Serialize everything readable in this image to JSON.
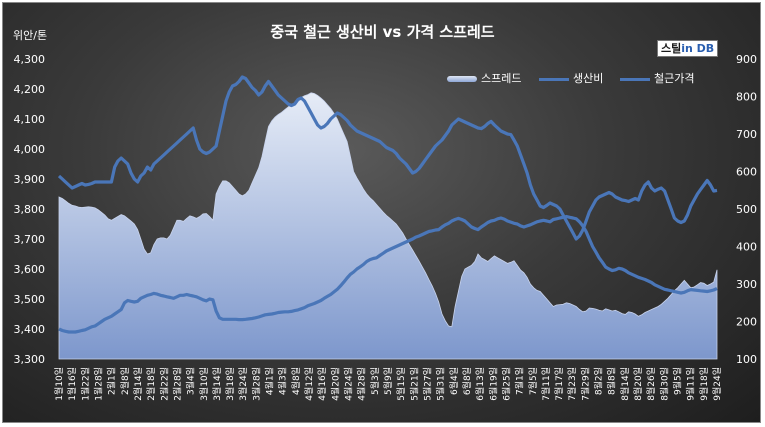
{
  "title": "중국 철근 생산비 vs 가격 스프레드",
  "unit_label": "위안/톤",
  "logo": {
    "part1": "스틸",
    "part2": "in DB"
  },
  "colors": {
    "line": "#4a76b8",
    "area_top": "#e6ecf7",
    "area_bottom": "#7d97cc",
    "text": "#ffffff"
  },
  "chart_data": {
    "type": "line",
    "grid": false,
    "legend_position": "top-right",
    "left_axis": {
      "min": 3300,
      "max": 4300,
      "ticks": [
        "3,300",
        "3,400",
        "3,500",
        "3,600",
        "3,700",
        "3,800",
        "3,900",
        "4,000",
        "4,100",
        "4,200",
        "4,300"
      ]
    },
    "right_axis": {
      "min": 100,
      "max": 900,
      "ticks": [
        "100",
        "200",
        "300",
        "400",
        "500",
        "600",
        "700",
        "800",
        "900"
      ]
    },
    "x_labels": [
      "1월10일",
      "1월16일",
      "1월22일",
      "1월28일",
      "2월1일",
      "2월8일",
      "2월14일",
      "2월18일",
      "2월22일",
      "2월28일",
      "3월4일",
      "3월10일",
      "3월14일",
      "3월18일",
      "3월24일",
      "3월28일",
      "4월1일",
      "4월3일",
      "4월8일",
      "4월12일",
      "4월16일",
      "4월20일",
      "4월24일",
      "4월28일",
      "5월3일",
      "5월9일",
      "5월15일",
      "5월21일",
      "5월27일",
      "5월31일",
      "6월4일",
      "6월8일",
      "6월13일",
      "6월19일",
      "6월25일",
      "7월1일",
      "7월5일",
      "7월11일",
      "7월17일",
      "7월23일",
      "7월29일",
      "8월2일",
      "8월8일",
      "8월14일",
      "8월20일",
      "8월26일",
      "8월30일",
      "9월5일",
      "9월11일",
      "9월18일",
      "9월24일"
    ],
    "series": [
      {
        "name": "스프레드",
        "axis": "right",
        "style": "area",
        "values": [
          532,
          528,
          522,
          515,
          510,
          508,
          505,
          504,
          505,
          506,
          505,
          503,
          498,
          491,
          484,
          474,
          470,
          475,
          480,
          485,
          482,
          475,
          468,
          460,
          445,
          420,
          393,
          380,
          383,
          405,
          420,
          423,
          423,
          420,
          430,
          450,
          470,
          470,
          467,
          475,
          482,
          479,
          475,
          480,
          487,
          488,
          480,
          470,
          540,
          560,
          575,
          575,
          570,
          560,
          550,
          540,
          535,
          540,
          550,
          570,
          590,
          610,
          640,
          680,
          720,
          735,
          745,
          752,
          758,
          765,
          772,
          779,
          782,
          788,
          797,
          802,
          805,
          810,
          808,
          803,
          796,
          788,
          778,
          768,
          755,
          740,
          720,
          700,
          680,
          640,
          600,
          583,
          568,
          553,
          540,
          530,
          522,
          512,
          502,
          492,
          483,
          476,
          468,
          460,
          448,
          436,
          420,
          405,
          391,
          376,
          361,
          345,
          330,
          312,
          295,
          275,
          252,
          220,
          202,
          188,
          186,
          240,
          280,
          320,
          340,
          345,
          350,
          360,
          380,
          370,
          365,
          360,
          368,
          375,
          370,
          365,
          360,
          355,
          358,
          362,
          350,
          337,
          330,
          318,
          300,
          290,
          283,
          280,
          270,
          260,
          250,
          240,
          244,
          245,
          246,
          250,
          248,
          244,
          240,
          232,
          226,
          228,
          236,
          235,
          233,
          230,
          228,
          234,
          231,
          228,
          230,
          226,
          221,
          219,
          226,
          224,
          220,
          214,
          218,
          224,
          228,
          232,
          236,
          240,
          246,
          254,
          262,
          272,
          282,
          290,
          300,
          310,
          300,
          290,
          292,
          298,
          304,
          302,
          296,
          300,
          305,
          338
        ]
      },
      {
        "name": "생산비",
        "axis": "right",
        "style": "line",
        "values": [
          180,
          176,
          174,
          172,
          172,
          172,
          174,
          176,
          178,
          182,
          186,
          188,
          194,
          200,
          206,
          210,
          214,
          220,
          226,
          232,
          250,
          256,
          254,
          252,
          254,
          262,
          266,
          270,
          272,
          275,
          273,
          270,
          268,
          266,
          264,
          262,
          266,
          270,
          270,
          272,
          270,
          268,
          266,
          262,
          258,
          255,
          260,
          258,
          228,
          210,
          206,
          206,
          206,
          206,
          206,
          205,
          205,
          206,
          207,
          208,
          210,
          212,
          215,
          218,
          219,
          220,
          222,
          224,
          225,
          226,
          226,
          227,
          229,
          231,
          234,
          237,
          242,
          245,
          248,
          252,
          256,
          262,
          267,
          272,
          279,
          286,
          295,
          305,
          316,
          326,
          332,
          340,
          346,
          352,
          360,
          365,
          368,
          370,
          376,
          382,
          388,
          392,
          396,
          400,
          404,
          408,
          412,
          416,
          420,
          425,
          428,
          432,
          436,
          440,
          442,
          444,
          445,
          452,
          458,
          462,
          468,
          472,
          475,
          472,
          468,
          460,
          452,
          448,
          445,
          452,
          458,
          464,
          468,
          470,
          474,
          476,
          473,
          468,
          465,
          462,
          460,
          455,
          452,
          455,
          458,
          462,
          466,
          468,
          470,
          468,
          466,
          472,
          474,
          476,
          478,
          480,
          478,
          476,
          474,
          466,
          455,
          440,
          420,
          400,
          385,
          370,
          358,
          345,
          340,
          336,
          338,
          342,
          340,
          336,
          330,
          326,
          322,
          318,
          315,
          312,
          308,
          304,
          298,
          294,
          290,
          286,
          284,
          282,
          280,
          278,
          276,
          278,
          282,
          285,
          284,
          283,
          282,
          281,
          280,
          282,
          284,
          288
        ]
      },
      {
        "name": "철근가격",
        "axis": "left",
        "style": "line",
        "values": [
          3910,
          3900,
          3890,
          3880,
          3870,
          3875,
          3880,
          3885,
          3880,
          3882,
          3885,
          3890,
          3890,
          3890,
          3890,
          3890,
          3890,
          3940,
          3960,
          3970,
          3960,
          3950,
          3920,
          3900,
          3890,
          3910,
          3920,
          3940,
          3930,
          3950,
          3960,
          3970,
          3980,
          3990,
          4000,
          4010,
          4020,
          4030,
          4040,
          4050,
          4060,
          4070,
          4030,
          4000,
          3990,
          3985,
          3990,
          4000,
          4010,
          4060,
          4110,
          4160,
          4190,
          4210,
          4215,
          4225,
          4240,
          4235,
          4220,
          4205,
          4195,
          4180,
          4190,
          4210,
          4225,
          4210,
          4195,
          4180,
          4170,
          4160,
          4150,
          4145,
          4150,
          4165,
          4170,
          4160,
          4140,
          4120,
          4100,
          4080,
          4070,
          4075,
          4085,
          4100,
          4110,
          4120,
          4115,
          4105,
          4095,
          4080,
          4070,
          4060,
          4055,
          4050,
          4045,
          4040,
          4035,
          4030,
          4025,
          4015,
          4005,
          4000,
          3995,
          3985,
          3970,
          3960,
          3950,
          3935,
          3920,
          3925,
          3935,
          3950,
          3965,
          3980,
          3995,
          4010,
          4020,
          4030,
          4045,
          4060,
          4080,
          4090,
          4100,
          4095,
          4090,
          4085,
          4080,
          4075,
          4070,
          4068,
          4075,
          4085,
          4092,
          4080,
          4070,
          4060,
          4055,
          4050,
          4048,
          4030,
          4010,
          3980,
          3950,
          3920,
          3880,
          3850,
          3830,
          3810,
          3805,
          3812,
          3820,
          3815,
          3810,
          3800,
          3780,
          3760,
          3740,
          3720,
          3700,
          3710,
          3730,
          3760,
          3790,
          3810,
          3830,
          3840,
          3845,
          3850,
          3855,
          3850,
          3840,
          3835,
          3830,
          3828,
          3825,
          3830,
          3835,
          3830,
          3860,
          3880,
          3890,
          3870,
          3860,
          3866,
          3870,
          3860,
          3830,
          3800,
          3770,
          3760,
          3755,
          3760,
          3780,
          3810,
          3830,
          3850,
          3865,
          3880,
          3895,
          3880,
          3860,
          3862
        ]
      }
    ]
  }
}
